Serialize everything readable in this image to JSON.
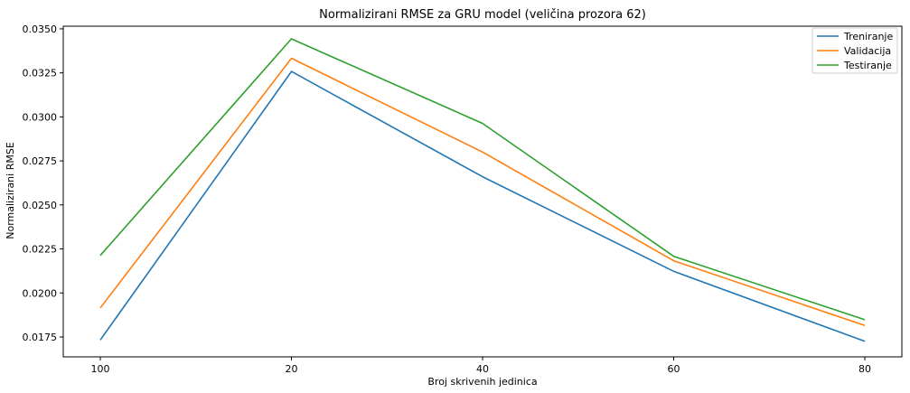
{
  "chart_data": {
    "type": "line",
    "title": "Normalizirani RMSE za GRU model (veličina prozora 62)",
    "xlabel": "Broj skrivenih jedinica",
    "ylabel": "Normalizirani RMSE",
    "categories": [
      "100",
      "20",
      "40",
      "60",
      "80"
    ],
    "ylim": [
      0.01637,
      0.03515
    ],
    "yticks": [
      "0.0175",
      "0.0200",
      "0.0225",
      "0.0250",
      "0.0275",
      "0.0300",
      "0.0325",
      "0.0350"
    ],
    "grid": false,
    "legend_position": "top-right",
    "series": [
      {
        "name": "Treniranje",
        "color": "#1f77b4",
        "values": [
          0.01733,
          0.03258,
          0.0266,
          0.02123,
          0.01725
        ]
      },
      {
        "name": "Validacija",
        "color": "#ff7f0e",
        "values": [
          0.01915,
          0.03333,
          0.028,
          0.02183,
          0.01815
        ]
      },
      {
        "name": "Testiranje",
        "color": "#2ca02c",
        "values": [
          0.02213,
          0.03443,
          0.02963,
          0.02208,
          0.01848
        ]
      }
    ]
  }
}
